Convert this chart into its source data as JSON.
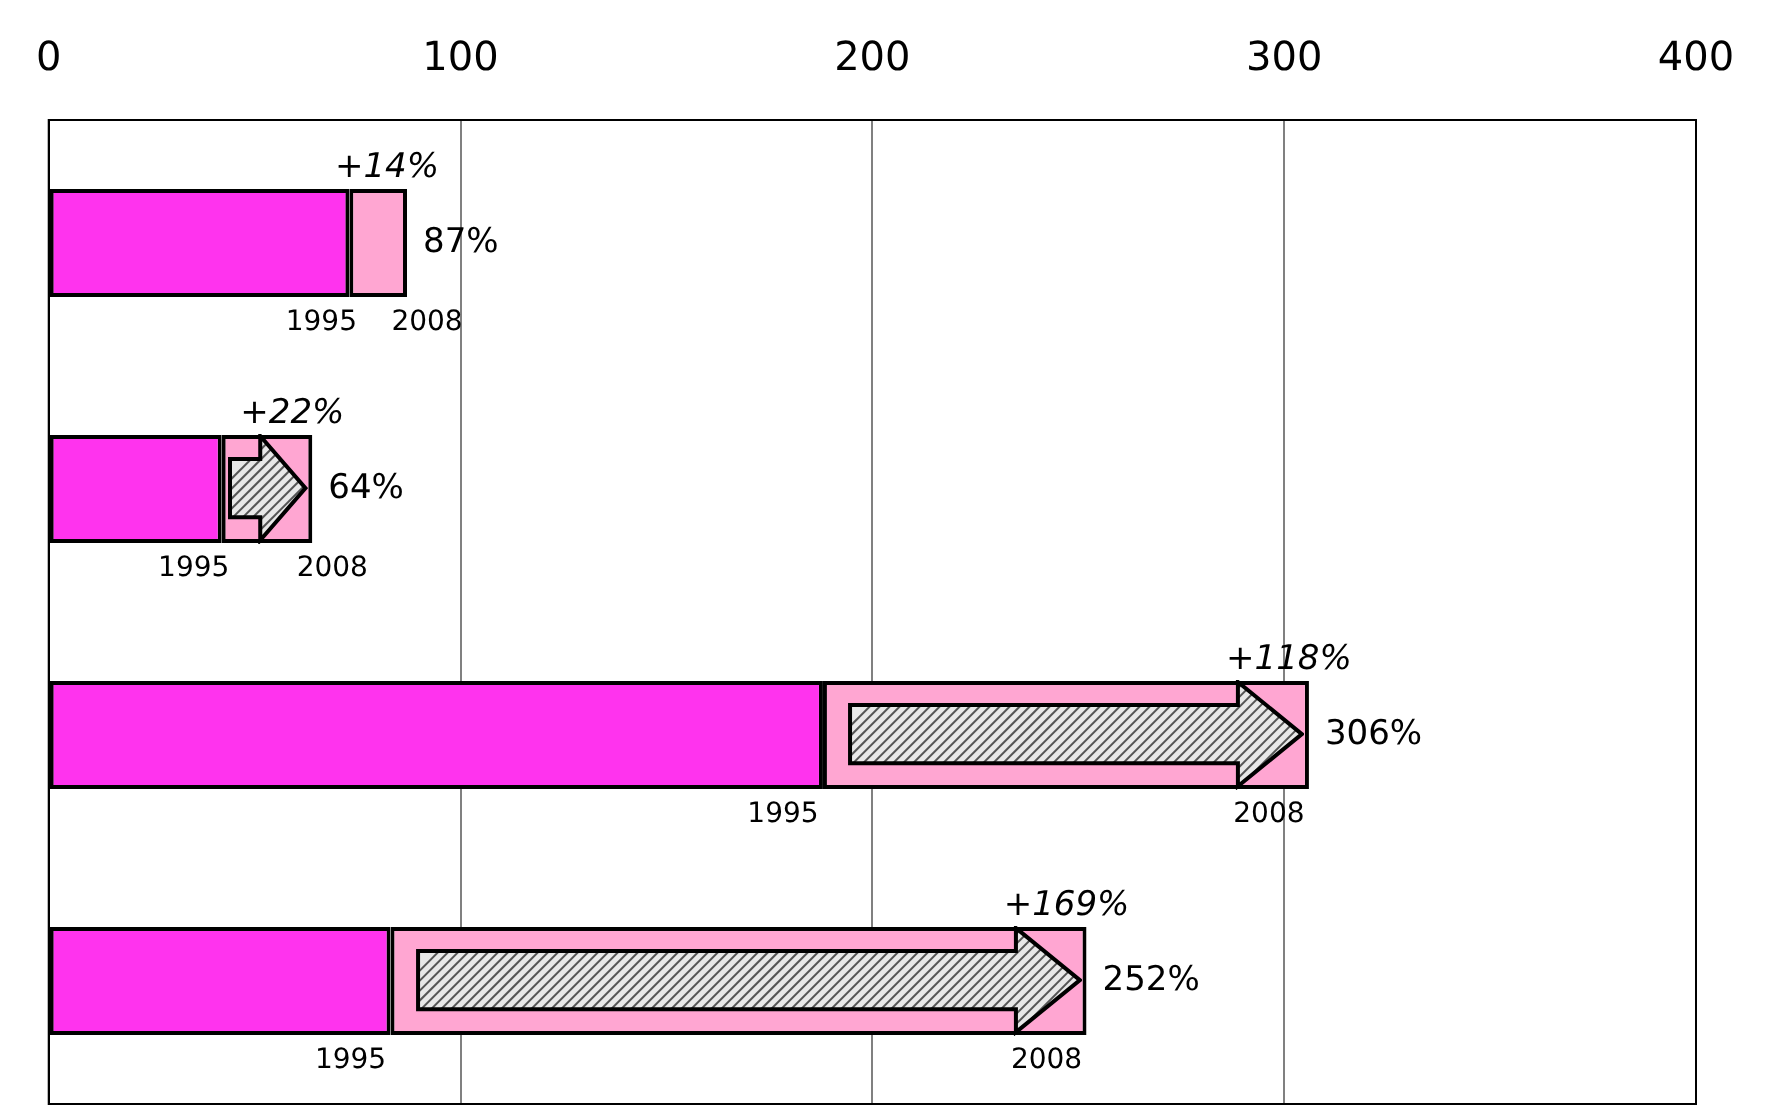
{
  "chart_data": {
    "type": "bar",
    "orientation": "horizontal",
    "stacked": true,
    "categories": [
      null,
      null,
      null,
      null
    ],
    "series": [
      {
        "color": "#ff33ee",
        "values": [
          73,
          42,
          188,
          83
        ]
      },
      {
        "color": "#ffa6d2",
        "values": [
          14,
          22,
          118,
          169
        ],
        "value_labels": [
          "+14%",
          "+22%",
          "+118%",
          "+169%"
        ]
      }
    ],
    "totals": [
      "87%",
      "64%",
      "306%",
      "252%"
    ],
    "xlim": [
      0,
      400
    ],
    "xticks": [
      0,
      100,
      200,
      300,
      400
    ],
    "grid": "x",
    "legend": false,
    "annotations": [
      "1995",
      "2008",
      "1995",
      "2008",
      "1995",
      "2008",
      "1995",
      "2008"
    ]
  }
}
